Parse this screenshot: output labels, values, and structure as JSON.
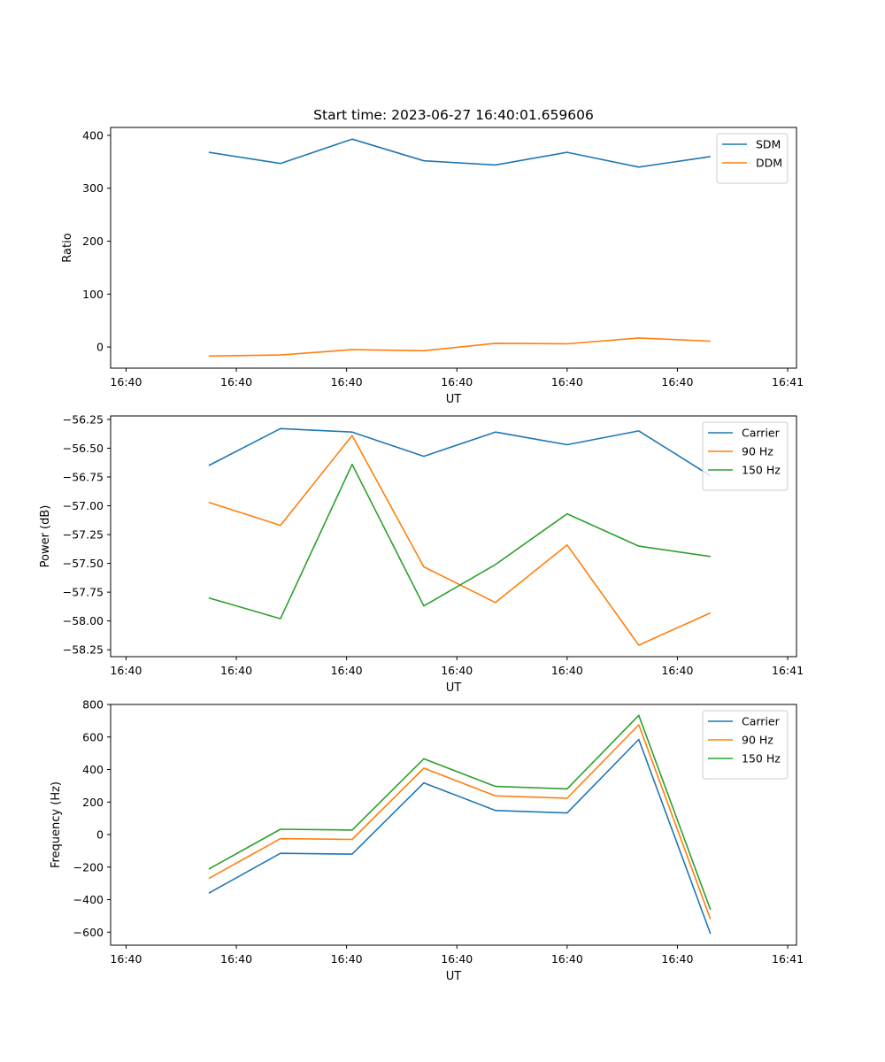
{
  "figure_title": "Start time: 2023-06-27 16:40:01.659606",
  "colors": {
    "c0": "#1f77b4",
    "c1": "#ff7f0e",
    "c2": "#2ca02c"
  },
  "chart_data": [
    {
      "type": "line",
      "xlabel": "UT",
      "ylabel": "Ratio",
      "x": [
        0.75,
        1.4,
        2.05,
        2.7,
        3.35,
        4.0,
        4.65,
        5.3
      ],
      "xlim": [
        -0.14,
        6.08
      ],
      "ylim": [
        -40,
        415
      ],
      "xticks": [
        {
          "v": 0,
          "label": "16:40"
        },
        {
          "v": 1,
          "label": "16:40"
        },
        {
          "v": 2,
          "label": "16:40"
        },
        {
          "v": 3,
          "label": "16:40"
        },
        {
          "v": 4,
          "label": "16:40"
        },
        {
          "v": 5,
          "label": "16:40"
        },
        {
          "v": 6,
          "label": "16:41"
        }
      ],
      "yticks": [
        {
          "v": 400,
          "label": "400"
        },
        {
          "v": 300,
          "label": "300"
        },
        {
          "v": 200,
          "label": "200"
        },
        {
          "v": 100,
          "label": "100"
        },
        {
          "v": 0,
          "label": "0"
        }
      ],
      "legend": "top-right",
      "series": [
        {
          "name": "SDM",
          "color": "#1f77b4",
          "values": [
            368,
            347,
            393,
            352,
            344,
            368,
            340,
            360
          ]
        },
        {
          "name": "DDM",
          "color": "#ff7f0e",
          "values": [
            -17,
            -15,
            -5,
            -7,
            7,
            6,
            17,
            11
          ]
        }
      ]
    },
    {
      "type": "line",
      "xlabel": "UT",
      "ylabel": "Power (dB)",
      "x": [
        0.75,
        1.4,
        2.05,
        2.7,
        3.35,
        4.0,
        4.65,
        5.3
      ],
      "xlim": [
        -0.14,
        6.08
      ],
      "ylim": [
        -58.31,
        -56.22
      ],
      "xticks": [
        {
          "v": 0,
          "label": "16:40"
        },
        {
          "v": 1,
          "label": "16:40"
        },
        {
          "v": 2,
          "label": "16:40"
        },
        {
          "v": 3,
          "label": "16:40"
        },
        {
          "v": 4,
          "label": "16:40"
        },
        {
          "v": 5,
          "label": "16:40"
        },
        {
          "v": 6,
          "label": "16:41"
        }
      ],
      "yticks": [
        {
          "v": -56.25,
          "label": "−56.25"
        },
        {
          "v": -56.5,
          "label": "−56.50"
        },
        {
          "v": -56.75,
          "label": "−56.75"
        },
        {
          "v": -57.0,
          "label": "−57.00"
        },
        {
          "v": -57.25,
          "label": "−57.25"
        },
        {
          "v": -57.5,
          "label": "−57.50"
        },
        {
          "v": -57.75,
          "label": "−57.75"
        },
        {
          "v": -58.0,
          "label": "−58.00"
        },
        {
          "v": -58.25,
          "label": "−58.25"
        }
      ],
      "legend": "top-right",
      "series": [
        {
          "name": "Carrier",
          "color": "#1f77b4",
          "values": [
            -56.65,
            -56.33,
            -56.36,
            -56.57,
            -56.36,
            -56.47,
            -56.35,
            -56.74
          ]
        },
        {
          "name": "90 Hz",
          "color": "#ff7f0e",
          "values": [
            -56.97,
            -57.17,
            -56.39,
            -57.53,
            -57.84,
            -57.34,
            -58.21,
            -57.93
          ]
        },
        {
          "name": "150 Hz",
          "color": "#2ca02c",
          "values": [
            -57.8,
            -57.98,
            -56.64,
            -57.87,
            -57.51,
            -57.07,
            -57.35,
            -57.44
          ]
        }
      ]
    },
    {
      "type": "line",
      "xlabel": "UT",
      "ylabel": "Frequency (Hz)",
      "x": [
        0.75,
        1.4,
        2.05,
        2.7,
        3.35,
        4.0,
        4.65,
        5.3
      ],
      "xlim": [
        -0.14,
        6.08
      ],
      "ylim": [
        -680,
        800
      ],
      "xticks": [
        {
          "v": 0,
          "label": "16:40"
        },
        {
          "v": 1,
          "label": "16:40"
        },
        {
          "v": 2,
          "label": "16:40"
        },
        {
          "v": 3,
          "label": "16:40"
        },
        {
          "v": 4,
          "label": "16:40"
        },
        {
          "v": 5,
          "label": "16:40"
        },
        {
          "v": 6,
          "label": "16:41"
        }
      ],
      "yticks": [
        {
          "v": 800,
          "label": "800"
        },
        {
          "v": 600,
          "label": "600"
        },
        {
          "v": 400,
          "label": "400"
        },
        {
          "v": 200,
          "label": "200"
        },
        {
          "v": 0,
          "label": "0"
        },
        {
          "v": -200,
          "label": "−200"
        },
        {
          "v": -400,
          "label": "−400"
        },
        {
          "v": -600,
          "label": "−600"
        }
      ],
      "legend": "top-right",
      "series": [
        {
          "name": "Carrier",
          "color": "#1f77b4",
          "values": [
            -360,
            -115,
            -120,
            318,
            148,
            133,
            585,
            -610
          ]
        },
        {
          "name": "90 Hz",
          "color": "#ff7f0e",
          "values": [
            -270,
            -25,
            -30,
            408,
            238,
            223,
            675,
            -520
          ]
        },
        {
          "name": "150 Hz",
          "color": "#2ca02c",
          "values": [
            -212,
            33,
            28,
            466,
            296,
            281,
            733,
            -462
          ]
        }
      ]
    }
  ]
}
